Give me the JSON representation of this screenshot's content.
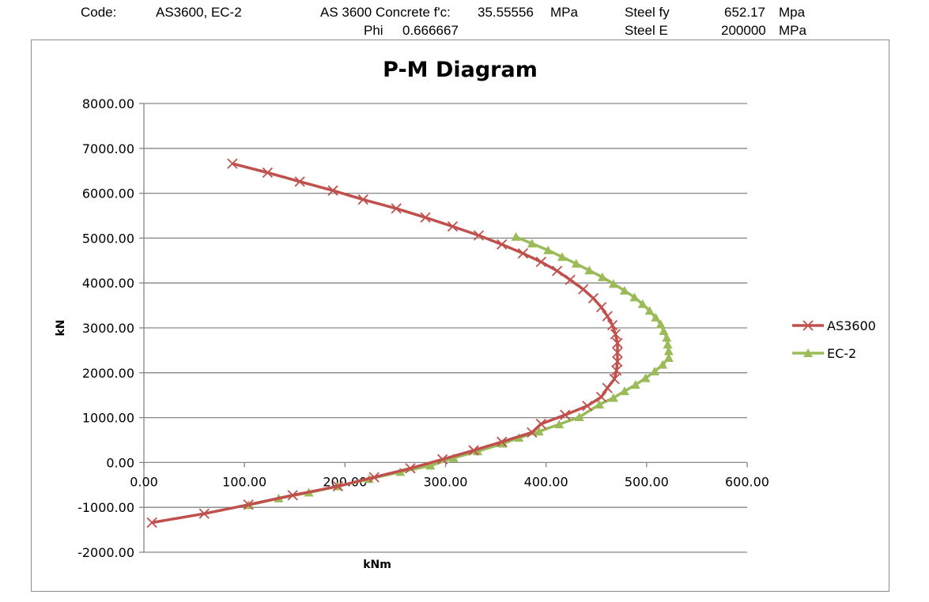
{
  "header": {
    "code_label": "Code:",
    "code_value": "AS3600, EC-2",
    "concrete_label": "AS 3600 Concrete f'c:",
    "concrete_value": "35.55556",
    "concrete_unit": "MPa",
    "phi_label": "Phi",
    "phi_value": "0.666667",
    "steel_fy_label": "Steel fy",
    "steel_fy_value": "652.17",
    "steel_fy_unit": "Mpa",
    "steel_e_label": "Steel E",
    "steel_e_value": "200000",
    "steel_e_unit": "MPa"
  },
  "chart_data": {
    "type": "line",
    "title": "P-M Diagram",
    "xlabel": "kNm",
    "ylabel": "kN",
    "xlim": [
      0,
      600
    ],
    "ylim": [
      -2000,
      8000
    ],
    "x_ticks": [
      "0.00",
      "100.00",
      "200.00",
      "300.00",
      "400.00",
      "500.00",
      "600.00"
    ],
    "y_ticks": [
      "8000.00",
      "7000.00",
      "6000.00",
      "5000.00",
      "4000.00",
      "3000.00",
      "2000.00",
      "1000.00",
      "0.00",
      "-1000.00",
      "-2000.00"
    ],
    "grid": "horizontal",
    "legend_position": "right",
    "series": [
      {
        "name": "AS3600",
        "color": "#c0504d",
        "marker": "x",
        "points": [
          [
            88,
            6660
          ],
          [
            123,
            6460
          ],
          [
            155,
            6260
          ],
          [
            188,
            6060
          ],
          [
            218,
            5860
          ],
          [
            251,
            5660
          ],
          [
            280,
            5460
          ],
          [
            307,
            5260
          ],
          [
            333,
            5060
          ],
          [
            356,
            4860
          ],
          [
            377,
            4660
          ],
          [
            395,
            4470
          ],
          [
            411,
            4270
          ],
          [
            424,
            4070
          ],
          [
            437,
            3860
          ],
          [
            447,
            3660
          ],
          [
            455,
            3460
          ],
          [
            461,
            3260
          ],
          [
            466,
            3060
          ],
          [
            469,
            2860
          ],
          [
            471,
            2660
          ],
          [
            471,
            2450
          ],
          [
            471,
            2250
          ],
          [
            470,
            2050
          ],
          [
            468,
            1860
          ],
          [
            461,
            1660
          ],
          [
            455,
            1460
          ],
          [
            441,
            1260
          ],
          [
            419,
            1060
          ],
          [
            395,
            860
          ],
          [
            386,
            670
          ],
          [
            356,
            460
          ],
          [
            328,
            270
          ],
          [
            297,
            70
          ],
          [
            265,
            -130
          ],
          [
            229,
            -330
          ],
          [
            193,
            -530
          ],
          [
            148,
            -730
          ],
          [
            104,
            -940
          ],
          [
            60,
            -1140
          ],
          [
            8,
            -1340
          ]
        ]
      },
      {
        "name": "EC-2",
        "color": "#9bbb59",
        "marker": "triangle",
        "points": [
          [
            370,
            5030
          ],
          [
            386,
            4880
          ],
          [
            402,
            4730
          ],
          [
            416,
            4580
          ],
          [
            430,
            4430
          ],
          [
            443,
            4280
          ],
          [
            456,
            4130
          ],
          [
            467,
            3980
          ],
          [
            478,
            3830
          ],
          [
            488,
            3680
          ],
          [
            496,
            3530
          ],
          [
            503,
            3380
          ],
          [
            509,
            3230
          ],
          [
            514,
            3080
          ],
          [
            517,
            2930
          ],
          [
            520,
            2780
          ],
          [
            521,
            2630
          ],
          [
            522,
            2480
          ],
          [
            522,
            2330
          ],
          [
            516,
            2180
          ],
          [
            508,
            2030
          ],
          [
            499,
            1880
          ],
          [
            489,
            1730
          ],
          [
            478,
            1590
          ],
          [
            467,
            1440
          ],
          [
            453,
            1290
          ],
          [
            433,
            1010
          ],
          [
            413,
            850
          ],
          [
            393,
            690
          ],
          [
            373,
            550
          ],
          [
            357,
            420
          ],
          [
            332,
            250
          ],
          [
            308,
            100
          ],
          [
            285,
            -70
          ],
          [
            255,
            -210
          ],
          [
            224,
            -370
          ],
          [
            193,
            -530
          ],
          [
            164,
            -670
          ],
          [
            134,
            -800
          ],
          [
            104,
            -950
          ]
        ]
      }
    ]
  }
}
